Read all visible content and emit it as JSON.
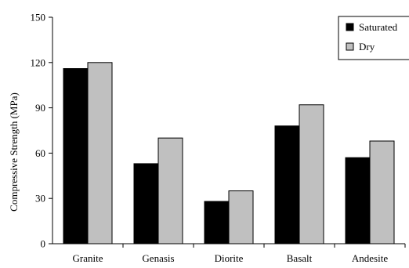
{
  "chart_data": {
    "type": "bar",
    "title": "",
    "xlabel": "",
    "ylabel": "Compressive Strength (MPa)",
    "ylim": [
      0,
      150
    ],
    "yticks": [
      0,
      30,
      60,
      90,
      120,
      150
    ],
    "categories": [
      "Granite",
      "Genasis",
      "Diorite",
      "Basalt",
      "Andesite"
    ],
    "series": [
      {
        "name": "Saturated",
        "color": "#000000",
        "values": [
          116,
          53,
          28,
          78,
          57
        ]
      },
      {
        "name": "Dry",
        "color": "#c0c0c0",
        "values": [
          120,
          70,
          35,
          92,
          68
        ]
      }
    ],
    "grid": false,
    "legend_position": "top-right"
  }
}
